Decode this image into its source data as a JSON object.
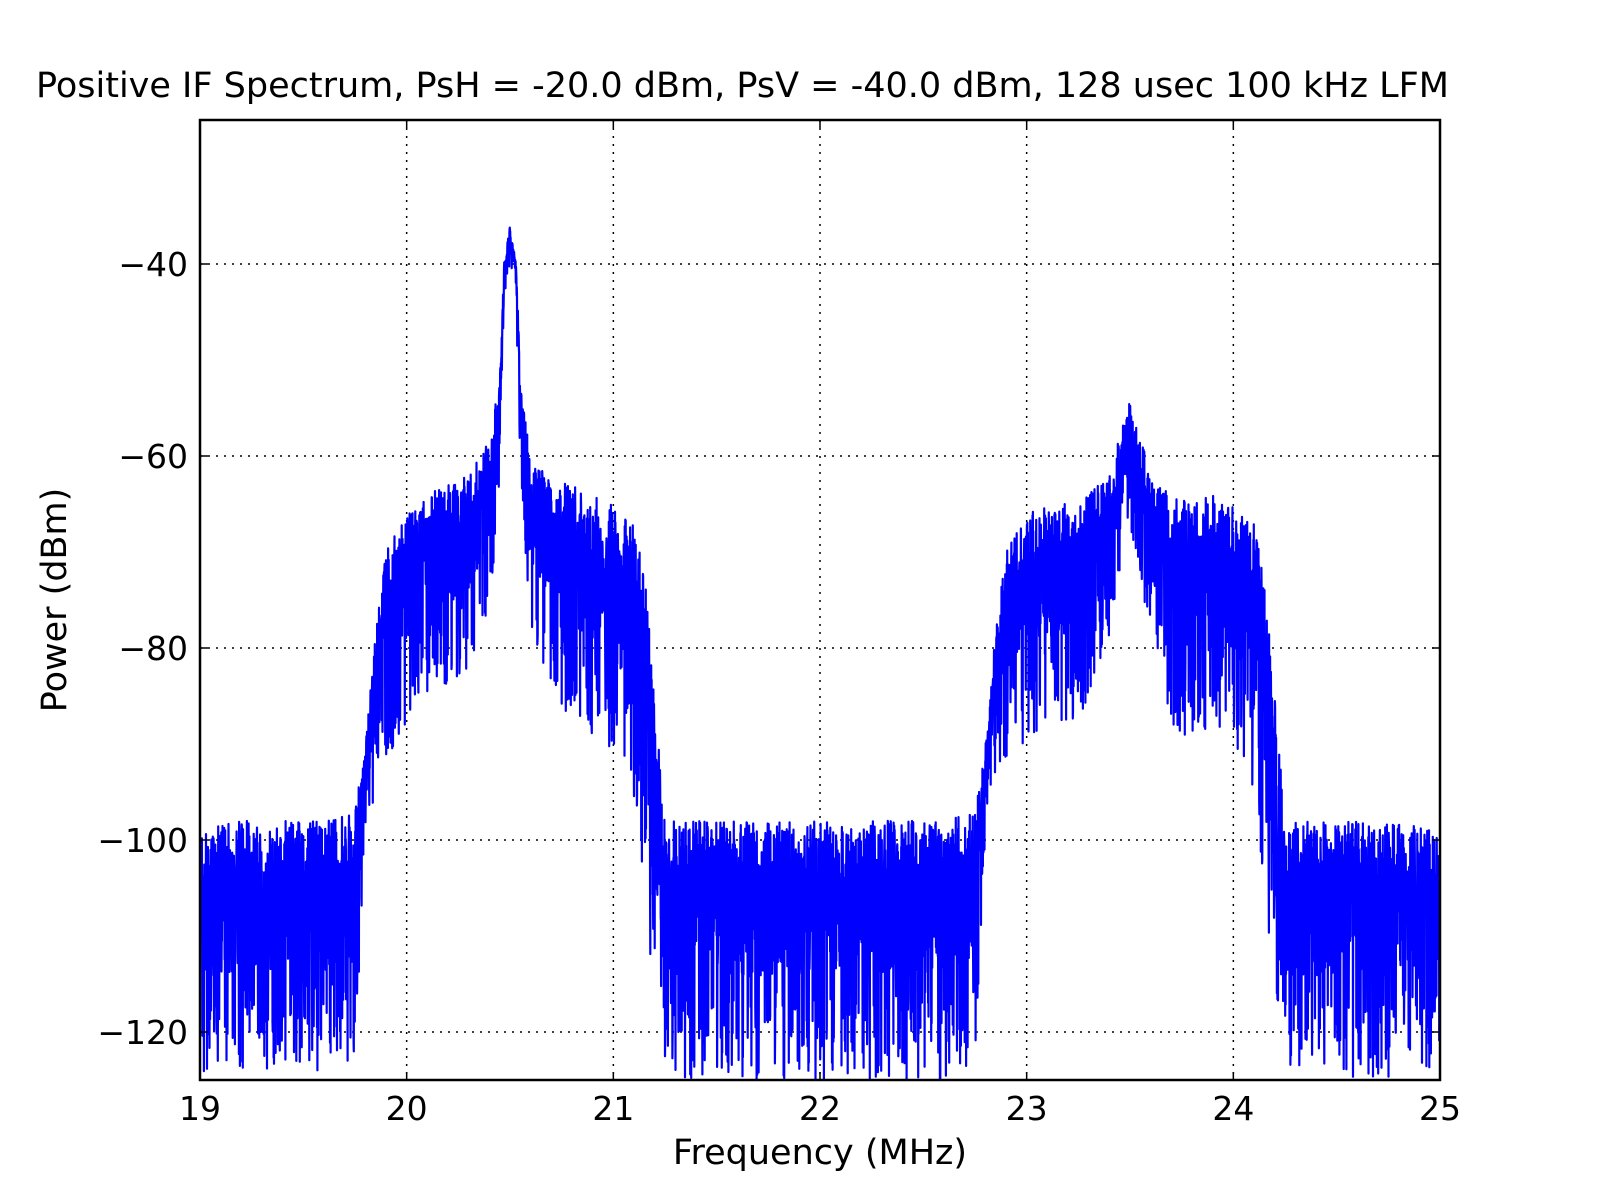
{
  "chart_data": {
    "type": "line",
    "title": "Positive IF Spectrum, PsH = -20.0 dBm, PsV = -40.0 dBm, 128 usec 100 kHz LFM",
    "xlabel": "Frequency (MHz)",
    "ylabel": "Power (dBm)",
    "xlim": [
      19,
      25
    ],
    "ylim": [
      -125,
      -25
    ],
    "xticks": [
      19,
      20,
      21,
      22,
      23,
      24,
      25
    ],
    "xtick_labels": [
      "19",
      "20",
      "21",
      "22",
      "23",
      "24",
      "25"
    ],
    "yticks": [
      -120,
      -100,
      -80,
      -60,
      -40
    ],
    "ytick_labels": [
      "−120",
      "−100",
      "−80",
      "−60",
      "−40"
    ],
    "grid": true,
    "color": "#0000ff",
    "envelope_x": [
      19.0,
      19.2,
      19.4,
      19.6,
      19.75,
      19.8,
      19.85,
      19.9,
      20.0,
      20.1,
      20.2,
      20.3,
      20.4,
      20.45,
      20.47,
      20.5,
      20.53,
      20.55,
      20.6,
      20.7,
      20.8,
      20.9,
      21.0,
      21.1,
      21.15,
      21.2,
      21.25,
      21.4,
      21.6,
      21.8,
      22.0,
      22.2,
      22.4,
      22.6,
      22.75,
      22.8,
      22.85,
      22.9,
      23.0,
      23.1,
      23.2,
      23.3,
      23.4,
      23.45,
      23.5,
      23.55,
      23.6,
      23.7,
      23.8,
      23.9,
      24.0,
      24.1,
      24.15,
      24.2,
      24.25,
      24.4,
      24.6,
      24.8,
      25.0
    ],
    "envelope_upper": [
      -99,
      -98,
      -98,
      -98,
      -97,
      -90,
      -78,
      -70,
      -66,
      -64,
      -63,
      -62,
      -58,
      -52,
      -40,
      -36,
      -40,
      -52,
      -60,
      -62,
      -63,
      -64,
      -65,
      -67,
      -72,
      -85,
      -98,
      -98,
      -98,
      -98,
      -98,
      -98,
      -98,
      -98,
      -97,
      -90,
      -78,
      -70,
      -66,
      -65,
      -65,
      -64,
      -62,
      -58,
      -54,
      -58,
      -62,
      -64,
      -65,
      -64,
      -65,
      -67,
      -72,
      -85,
      -98,
      -98,
      -98,
      -98,
      -99
    ],
    "envelope_lower": [
      -125,
      -124,
      -124,
      -124,
      -123,
      -100,
      -95,
      -92,
      -88,
      -85,
      -84,
      -82,
      -76,
      -64,
      -44,
      -40,
      -44,
      -64,
      -78,
      -84,
      -88,
      -90,
      -92,
      -96,
      -105,
      -118,
      -125,
      -125,
      -125,
      -125,
      -125,
      -125,
      -125,
      -125,
      -123,
      -100,
      -95,
      -92,
      -90,
      -88,
      -88,
      -86,
      -80,
      -72,
      -68,
      -72,
      -80,
      -88,
      -90,
      -88,
      -90,
      -96,
      -105,
      -118,
      -125,
      -125,
      -125,
      -125,
      -125
    ]
  }
}
